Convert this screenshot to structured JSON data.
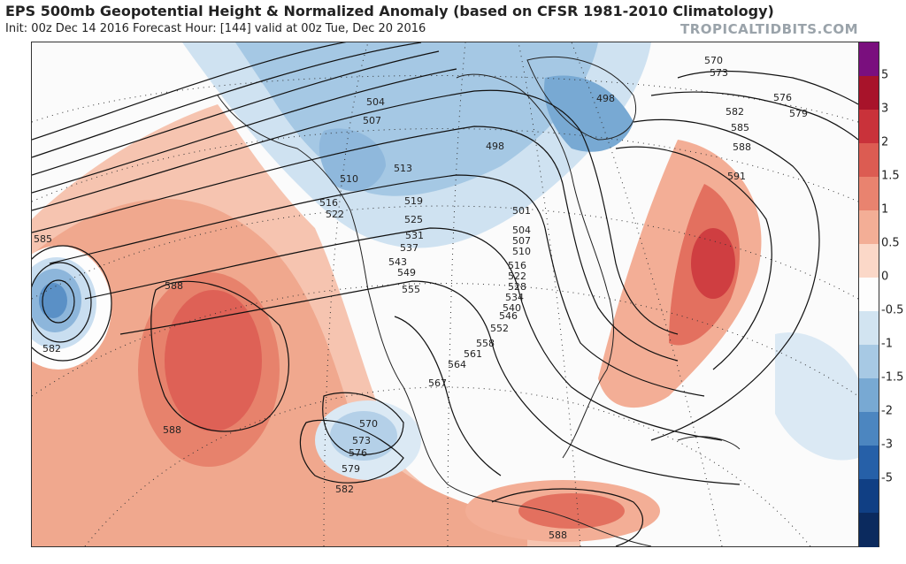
{
  "header": {
    "title": "EPS 500mb Geopotential Height & Normalized Anomaly (based on CFSR 1981-2010 Climatology)",
    "subtitle": "Init: 00z Dec 14 2016   Forecast Hour: [144]   valid at 00z Tue, Dec 20 2016",
    "brand": "TROPICALTIDBITS.COM"
  },
  "colorbar": {
    "labels": [
      "5",
      "3",
      "2",
      "1.5",
      "1",
      "0.5",
      "0",
      "-0.5",
      "-1",
      "-1.5",
      "-2",
      "-3",
      "-5"
    ],
    "colors": [
      "#7a0f7e",
      "#a8132a",
      "#c9323a",
      "#dc5c52",
      "#e9836f",
      "#f3ae96",
      "#fbd8c8",
      "#fdfdfd",
      "#d2e4f1",
      "#a7c9e4",
      "#78a9d3",
      "#4c86c0",
      "#2660a8",
      "#103f84",
      "#0b2a5e"
    ]
  },
  "map": {
    "contour_labels": [
      {
        "text": "570"
      },
      {
        "text": "573"
      },
      {
        "text": "576"
      },
      {
        "text": "579"
      },
      {
        "text": "582"
      },
      {
        "text": "585"
      },
      {
        "text": "588"
      },
      {
        "text": "591"
      },
      {
        "text": "498"
      },
      {
        "text": "504"
      },
      {
        "text": "507"
      },
      {
        "text": "498"
      },
      {
        "text": "513"
      },
      {
        "text": "510"
      },
      {
        "text": "516"
      },
      {
        "text": "519"
      },
      {
        "text": "522"
      },
      {
        "text": "525"
      },
      {
        "text": "531"
      },
      {
        "text": "537"
      },
      {
        "text": "543"
      },
      {
        "text": "549"
      },
      {
        "text": "555"
      },
      {
        "text": "501"
      },
      {
        "text": "504"
      },
      {
        "text": "507"
      },
      {
        "text": "510"
      },
      {
        "text": "516"
      },
      {
        "text": "522"
      },
      {
        "text": "528"
      },
      {
        "text": "534"
      },
      {
        "text": "540"
      },
      {
        "text": "546"
      },
      {
        "text": "552"
      },
      {
        "text": "558"
      },
      {
        "text": "561"
      },
      {
        "text": "564"
      },
      {
        "text": "567"
      },
      {
        "text": "570"
      },
      {
        "text": "573"
      },
      {
        "text": "576"
      },
      {
        "text": "579"
      },
      {
        "text": "582"
      },
      {
        "text": "585"
      },
      {
        "text": "582"
      },
      {
        "text": "588"
      },
      {
        "text": "588"
      },
      {
        "text": "588"
      }
    ]
  }
}
